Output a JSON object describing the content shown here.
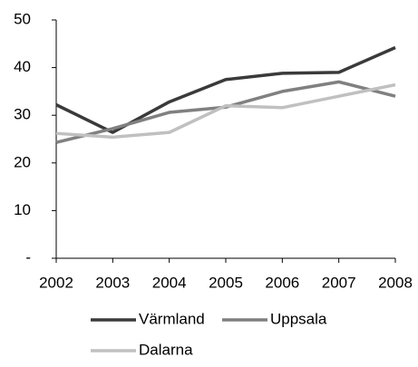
{
  "chart_data": {
    "type": "line",
    "categories": [
      "2002",
      "2003",
      "2004",
      "2005",
      "2006",
      "2007",
      "2008"
    ],
    "series": [
      {
        "name": "Värmland",
        "color": "#3a3a3a",
        "values": [
          32.2,
          26.4,
          32.8,
          37.5,
          38.8,
          39,
          44.2
        ]
      },
      {
        "name": "Uppsala",
        "color": "#808080",
        "values": [
          24.3,
          27.2,
          30.6,
          31.7,
          35,
          37,
          34
        ]
      },
      {
        "name": "Dalarna",
        "color": "#c0c0c0",
        "values": [
          26.2,
          25.4,
          26.4,
          32,
          31.6,
          34,
          36.4
        ]
      }
    ],
    "ylim": [
      0,
      50
    ],
    "yticks": [
      {
        "value": 0,
        "label": "-"
      },
      10,
      20,
      30,
      40,
      50
    ],
    "grid": false
  }
}
